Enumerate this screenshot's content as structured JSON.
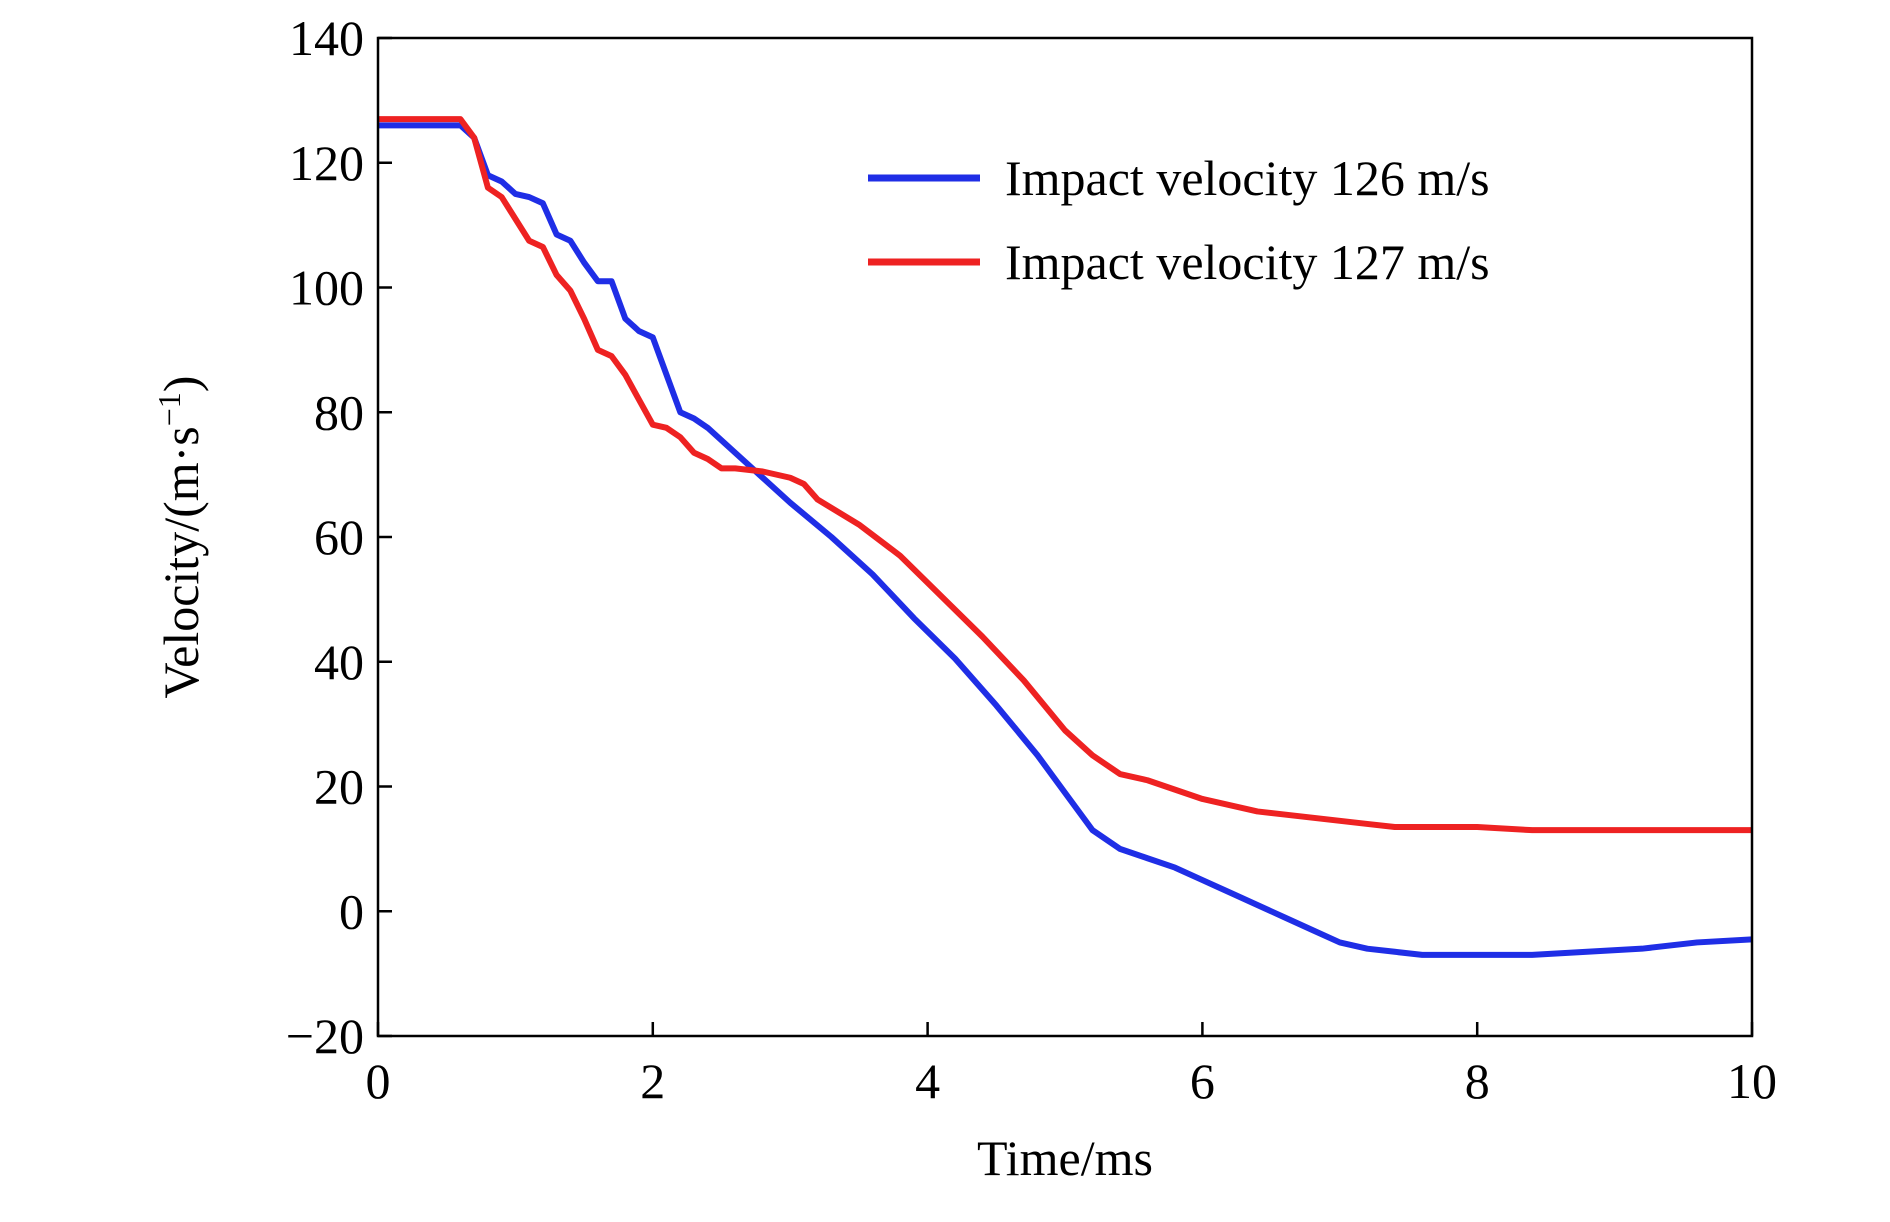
{
  "chart_data": {
    "type": "line",
    "title": "",
    "xlabel": "Time/ms",
    "ylabel": "Velocity/(m·s",
    "ylabel_sup": "−1",
    "ylabel_close": ")",
    "xlim": [
      0,
      10
    ],
    "ylim": [
      -20,
      140
    ],
    "xticks": [
      0,
      2,
      4,
      6,
      8,
      10
    ],
    "yticks": [
      -20,
      0,
      20,
      40,
      60,
      80,
      100,
      120,
      140
    ],
    "xtick_labels": [
      "0",
      "2",
      "4",
      "6",
      "8",
      "10"
    ],
    "ytick_labels": [
      "−20",
      "0",
      "20",
      "40",
      "60",
      "80",
      "100",
      "120",
      "140"
    ],
    "grid": false,
    "legend": {
      "placement": "top-right"
    },
    "series": [
      {
        "name": "Impact velocity 126 m/s",
        "color": "#1f2ee6",
        "x": [
          0,
          0.6,
          0.7,
          0.8,
          0.9,
          1.0,
          1.1,
          1.2,
          1.3,
          1.4,
          1.5,
          1.6,
          1.7,
          1.8,
          1.9,
          2.0,
          2.1,
          2.2,
          2.3,
          2.4,
          2.5,
          2.6,
          2.8,
          3.0,
          3.3,
          3.6,
          3.9,
          4.2,
          4.5,
          4.8,
          5.0,
          5.2,
          5.4,
          5.6,
          5.8,
          6.0,
          6.2,
          6.4,
          6.6,
          6.8,
          7.0,
          7.2,
          7.4,
          7.6,
          7.8,
          8.0,
          8.4,
          8.8,
          9.2,
          9.6,
          10.0
        ],
        "y": [
          126,
          126,
          124,
          118,
          117,
          115,
          114.5,
          113.5,
          108.5,
          107.5,
          104,
          101,
          101,
          95,
          93,
          92,
          86,
          80,
          79,
          77.5,
          75.5,
          73.5,
          69.5,
          65.5,
          60,
          54,
          47,
          40.5,
          33,
          25,
          19,
          13,
          10,
          8.5,
          7,
          5,
          3,
          1,
          -1,
          -3,
          -5,
          -6,
          -6.5,
          -7,
          -7,
          -7,
          -7,
          -6.5,
          -6,
          -5,
          -4.5
        ]
      },
      {
        "name": "Impact velocity 127 m/s",
        "color": "#ee2222",
        "x": [
          0,
          0.6,
          0.7,
          0.8,
          0.9,
          1.0,
          1.1,
          1.2,
          1.3,
          1.4,
          1.5,
          1.6,
          1.7,
          1.8,
          1.9,
          2.0,
          2.1,
          2.2,
          2.3,
          2.4,
          2.5,
          2.6,
          2.8,
          3.0,
          3.1,
          3.2,
          3.5,
          3.8,
          4.1,
          4.4,
          4.7,
          5.0,
          5.2,
          5.4,
          5.6,
          5.8,
          6.0,
          6.2,
          6.4,
          6.6,
          6.8,
          7.0,
          7.2,
          7.4,
          7.6,
          7.8,
          8.0,
          8.4,
          8.8,
          9.2,
          9.6,
          10.0
        ],
        "y": [
          127,
          127,
          124,
          116,
          114.5,
          111,
          107.5,
          106.5,
          102,
          99.5,
          95,
          90,
          89,
          86,
          82,
          78,
          77.5,
          76,
          73.5,
          72.5,
          71,
          71,
          70.5,
          69.5,
          68.5,
          66,
          62,
          57,
          50.5,
          44,
          37,
          29,
          25,
          22,
          21,
          19.5,
          18,
          17,
          16,
          15.5,
          15,
          14.5,
          14,
          13.5,
          13.5,
          13.5,
          13.5,
          13,
          13,
          13,
          13,
          13
        ]
      }
    ]
  }
}
